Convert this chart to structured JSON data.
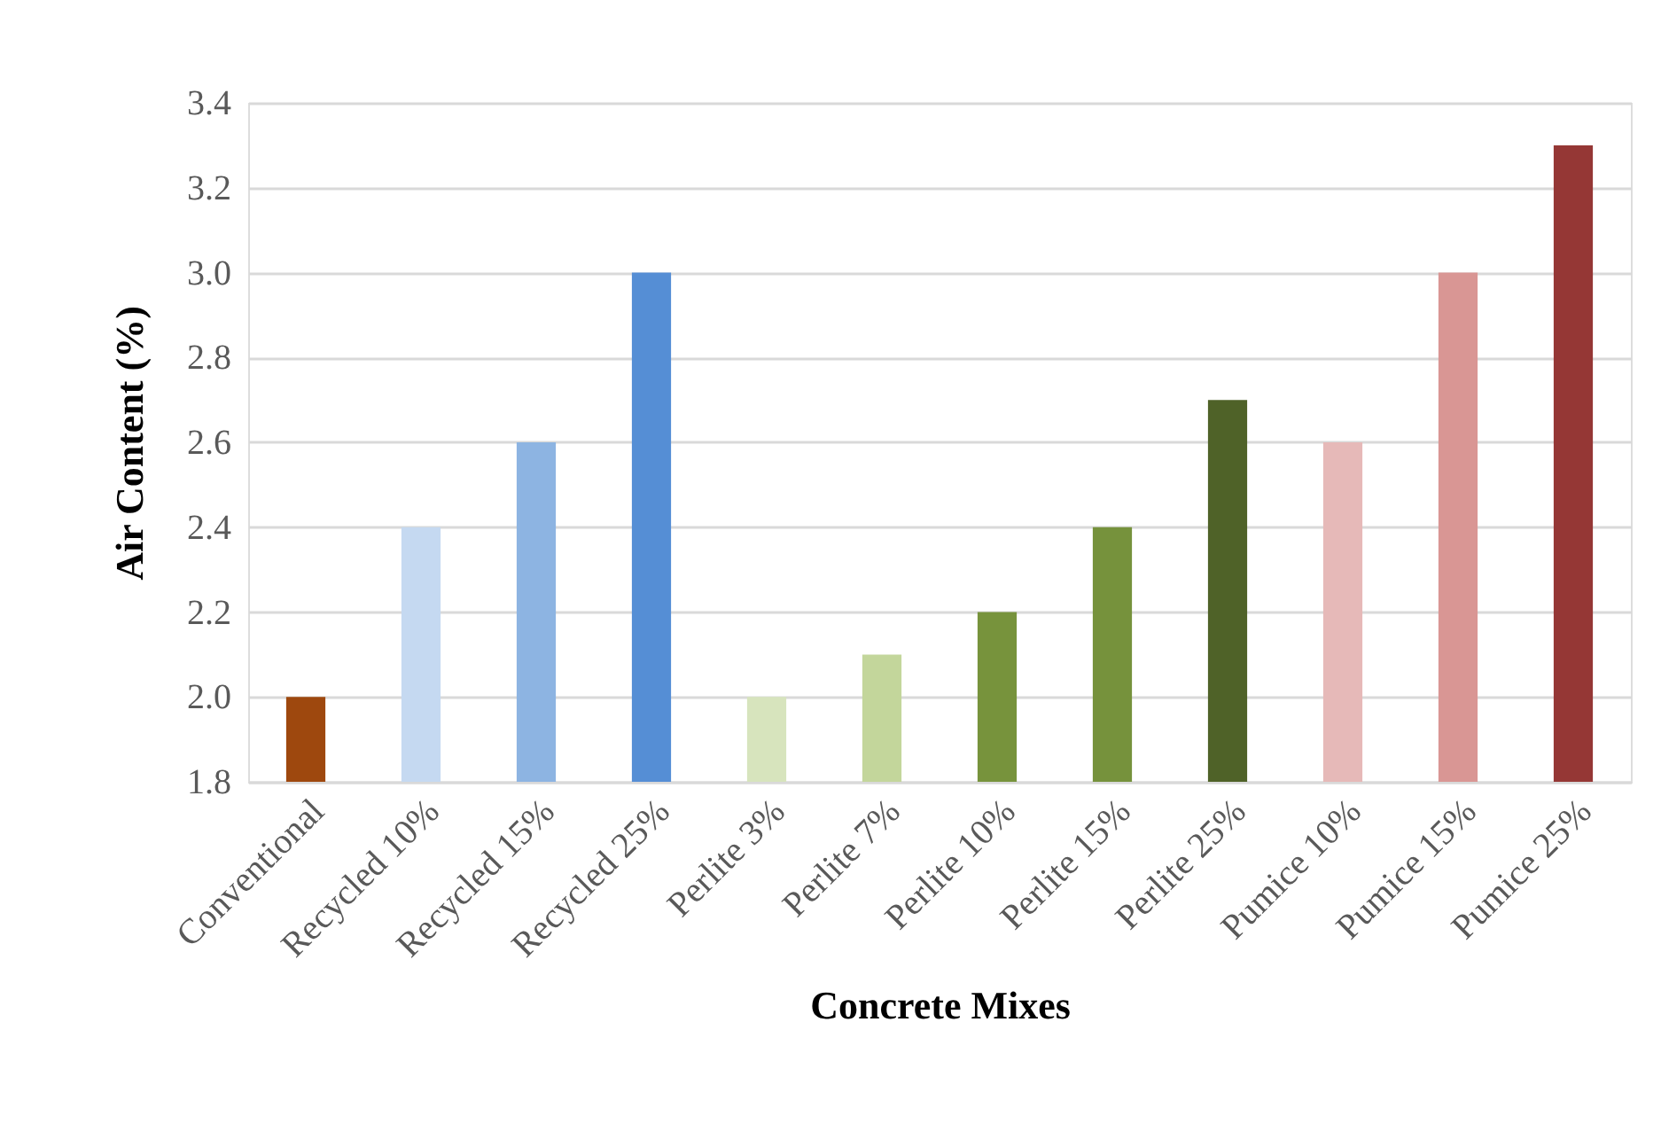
{
  "chart_data": {
    "type": "bar",
    "xlabel": "Concrete Mixes",
    "ylabel": "Air Content (%)",
    "categories": [
      "Conventional",
      "Recycled 10%",
      "Recycled 15%",
      "Recycled 25%",
      "Perlite 3%",
      "Perlite 7%",
      "Perlite 10%",
      "Perlite 15%",
      "Perlite 25%",
      "Pumice 10%",
      "Pumice 15%",
      "Pumice 25%"
    ],
    "values": [
      2.0,
      2.4,
      2.6,
      3.0,
      2.0,
      2.1,
      2.2,
      2.4,
      2.7,
      2.6,
      3.0,
      3.3
    ],
    "colors": [
      "#9e480e",
      "#c5d9f1",
      "#8db4e2",
      "#558ed5",
      "#d7e4bd",
      "#c3d69b",
      "#77933c",
      "#76923c",
      "#4f6228",
      "#e6b9b8",
      "#d99694",
      "#953735"
    ],
    "ylim": [
      1.8,
      3.4
    ],
    "yticks": [
      1.8,
      {
        "value": 2,
        "label": "2.0"
      },
      2.2,
      2.4,
      2.6,
      2.8,
      {
        "value": 3,
        "label": "3.0"
      },
      3.2,
      3.4
    ],
    "grid": "y"
  }
}
